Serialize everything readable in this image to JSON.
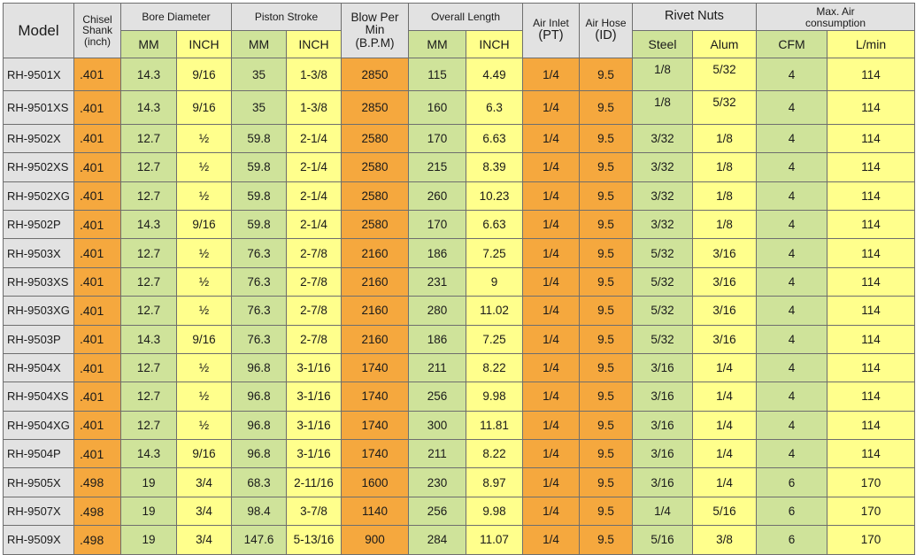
{
  "headers": {
    "model": "Model",
    "chisel_shank": [
      "Chisel",
      "Shank",
      "(inch)"
    ],
    "bore_diameter": "Bore Diameter",
    "piston_stroke": "Piston Stroke",
    "blow_per_min": [
      "Blow Per",
      "Min",
      "(B.P.M)"
    ],
    "overall_length": "Overall Length",
    "air_inlet": [
      "Air Inlet",
      "(PT)"
    ],
    "air_hose": [
      "Air Hose",
      "(ID)"
    ],
    "rivet_nuts": "Rivet Nuts",
    "max_air": [
      "Max. Air",
      "consumption"
    ],
    "bore_mm": "MM",
    "bore_inch": "INCH",
    "stroke_mm": "MM",
    "stroke_inch": "INCH",
    "length_mm": "MM",
    "length_inch": "INCH",
    "rivet_steel": "Steel",
    "rivet_alum": "Alum",
    "air_cfm": "CFM",
    "air_lmin": "L/min"
  },
  "rows": [
    {
      "model": "RH-9501X",
      "shank": ".401",
      "bore_mm": "14.3",
      "bore_inch": "9/16",
      "stroke_mm": "35",
      "stroke_inch": "1-3/8",
      "bpm": "2850",
      "len_mm": "115",
      "len_inch": "4.49",
      "inlet": "1/4",
      "hose": "9.5",
      "steel": "1/8",
      "alum": "5/32",
      "cfm": "4",
      "lmin": "114"
    },
    {
      "model": "RH-9501XS",
      "shank": ".401",
      "bore_mm": "14.3",
      "bore_inch": "9/16",
      "stroke_mm": "35",
      "stroke_inch": "1-3/8",
      "bpm": "2850",
      "len_mm": "160",
      "len_inch": "6.3",
      "inlet": "1/4",
      "hose": "9.5",
      "steel": "1/8",
      "alum": "5/32",
      "cfm": "4",
      "lmin": "114"
    },
    {
      "model": "RH-9502X",
      "shank": ".401",
      "bore_mm": "12.7",
      "bore_inch": "½",
      "stroke_mm": "59.8",
      "stroke_inch": "2-1/4",
      "bpm": "2580",
      "len_mm": "170",
      "len_inch": "6.63",
      "inlet": "1/4",
      "hose": "9.5",
      "steel": "3/32",
      "alum": "1/8",
      "cfm": "4",
      "lmin": "114"
    },
    {
      "model": "RH-9502XS",
      "shank": ".401",
      "bore_mm": "12.7",
      "bore_inch": "½",
      "stroke_mm": "59.8",
      "stroke_inch": "2-1/4",
      "bpm": "2580",
      "len_mm": "215",
      "len_inch": "8.39",
      "inlet": "1/4",
      "hose": "9.5",
      "steel": "3/32",
      "alum": "1/8",
      "cfm": "4",
      "lmin": "114"
    },
    {
      "model": "RH-9502XG",
      "shank": ".401",
      "bore_mm": "12.7",
      "bore_inch": "½",
      "stroke_mm": "59.8",
      "stroke_inch": "2-1/4",
      "bpm": "2580",
      "len_mm": "260",
      "len_inch": "10.23",
      "inlet": "1/4",
      "hose": "9.5",
      "steel": "3/32",
      "alum": "1/8",
      "cfm": "4",
      "lmin": "114"
    },
    {
      "model": "RH-9502P",
      "shank": ".401",
      "bore_mm": "14.3",
      "bore_inch": "9/16",
      "stroke_mm": "59.8",
      "stroke_inch": "2-1/4",
      "bpm": "2580",
      "len_mm": "170",
      "len_inch": "6.63",
      "inlet": "1/4",
      "hose": "9.5",
      "steel": "3/32",
      "alum": "1/8",
      "cfm": "4",
      "lmin": "114"
    },
    {
      "model": "RH-9503X",
      "shank": ".401",
      "bore_mm": "12.7",
      "bore_inch": "½",
      "stroke_mm": "76.3",
      "stroke_inch": "2-7/8",
      "bpm": "2160",
      "len_mm": "186",
      "len_inch": "7.25",
      "inlet": "1/4",
      "hose": "9.5",
      "steel": "5/32",
      "alum": "3/16",
      "cfm": "4",
      "lmin": "114"
    },
    {
      "model": "RH-9503XS",
      "shank": ".401",
      "bore_mm": "12.7",
      "bore_inch": "½",
      "stroke_mm": "76.3",
      "stroke_inch": "2-7/8",
      "bpm": "2160",
      "len_mm": "231",
      "len_inch": "9",
      "inlet": "1/4",
      "hose": "9.5",
      "steel": "5/32",
      "alum": "3/16",
      "cfm": "4",
      "lmin": "114"
    },
    {
      "model": "RH-9503XG",
      "shank": ".401",
      "bore_mm": "12.7",
      "bore_inch": "½",
      "stroke_mm": "76.3",
      "stroke_inch": "2-7/8",
      "bpm": "2160",
      "len_mm": "280",
      "len_inch": "11.02",
      "inlet": "1/4",
      "hose": "9.5",
      "steel": "5/32",
      "alum": "3/16",
      "cfm": "4",
      "lmin": "114"
    },
    {
      "model": "RH-9503P",
      "shank": ".401",
      "bore_mm": "14.3",
      "bore_inch": "9/16",
      "stroke_mm": "76.3",
      "stroke_inch": "2-7/8",
      "bpm": "2160",
      "len_mm": "186",
      "len_inch": "7.25",
      "inlet": "1/4",
      "hose": "9.5",
      "steel": "5/32",
      "alum": "3/16",
      "cfm": "4",
      "lmin": "114"
    },
    {
      "model": "RH-9504X",
      "shank": ".401",
      "bore_mm": "12.7",
      "bore_inch": "½",
      "stroke_mm": "96.8",
      "stroke_inch": "3-1/16",
      "bpm": "1740",
      "len_mm": "211",
      "len_inch": "8.22",
      "inlet": "1/4",
      "hose": "9.5",
      "steel": "3/16",
      "alum": "1/4",
      "cfm": "4",
      "lmin": "114"
    },
    {
      "model": "RH-9504XS",
      "shank": ".401",
      "bore_mm": "12.7",
      "bore_inch": "½",
      "stroke_mm": "96.8",
      "stroke_inch": "3-1/16",
      "bpm": "1740",
      "len_mm": "256",
      "len_inch": "9.98",
      "inlet": "1/4",
      "hose": "9.5",
      "steel": "3/16",
      "alum": "1/4",
      "cfm": "4",
      "lmin": "114"
    },
    {
      "model": "RH-9504XG",
      "shank": ".401",
      "bore_mm": "12.7",
      "bore_inch": "½",
      "stroke_mm": "96.8",
      "stroke_inch": "3-1/16",
      "bpm": "1740",
      "len_mm": "300",
      "len_inch": "11.81",
      "inlet": "1/4",
      "hose": "9.5",
      "steel": "3/16",
      "alum": "1/4",
      "cfm": "4",
      "lmin": "114"
    },
    {
      "model": "RH-9504P",
      "shank": ".401",
      "bore_mm": "14.3",
      "bore_inch": "9/16",
      "stroke_mm": "96.8",
      "stroke_inch": "3-1/16",
      "bpm": "1740",
      "len_mm": "211",
      "len_inch": "8.22",
      "inlet": "1/4",
      "hose": "9.5",
      "steel": "3/16",
      "alum": "1/4",
      "cfm": "4",
      "lmin": "114"
    },
    {
      "model": "RH-9505X",
      "shank": ".498",
      "bore_mm": "19",
      "bore_inch": "3/4",
      "stroke_mm": "68.3",
      "stroke_inch": "2-11/16",
      "bpm": "1600",
      "len_mm": "230",
      "len_inch": "8.97",
      "inlet": "1/4",
      "hose": "9.5",
      "steel": "3/16",
      "alum": "1/4",
      "cfm": "6",
      "lmin": "170"
    },
    {
      "model": "RH-9507X",
      "shank": ".498",
      "bore_mm": "19",
      "bore_inch": "3/4",
      "stroke_mm": "98.4",
      "stroke_inch": "3-7/8",
      "bpm": "1140",
      "len_mm": "256",
      "len_inch": "9.98",
      "inlet": "1/4",
      "hose": "9.5",
      "steel": "1/4",
      "alum": "5/16",
      "cfm": "6",
      "lmin": "170"
    },
    {
      "model": "RH-9509X",
      "shank": ".498",
      "bore_mm": "19",
      "bore_inch": "3/4",
      "stroke_mm": "147.6",
      "stroke_inch": "5-13/16",
      "bpm": "900",
      "len_mm": "284",
      "len_inch": "11.07",
      "inlet": "1/4",
      "hose": "9.5",
      "steel": "5/16",
      "alum": "3/8",
      "cfm": "6",
      "lmin": "170"
    }
  ],
  "colors": {
    "gray": "#e2e2e2",
    "green": "#cfe39a",
    "orange": "#f5a83e",
    "yellow": "#ffff8c",
    "border": "#6e6e6e"
  }
}
